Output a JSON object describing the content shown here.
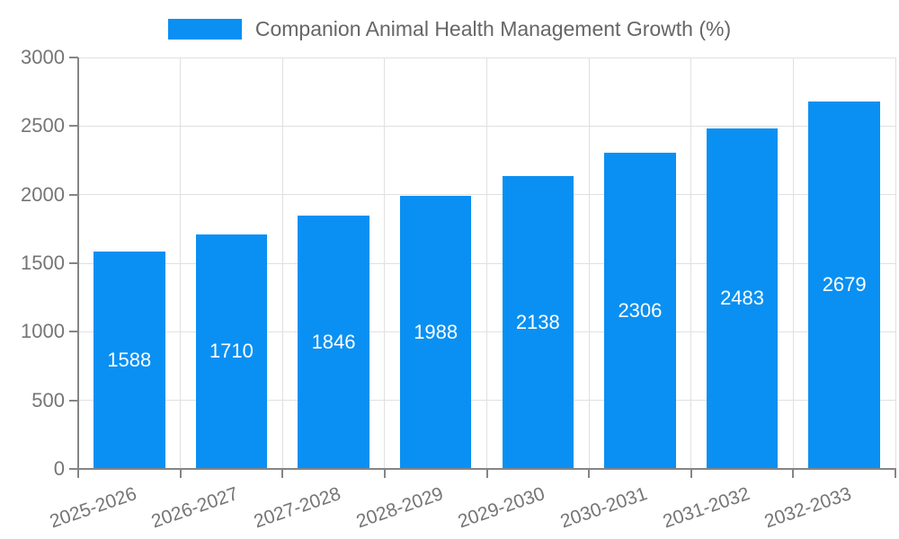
{
  "legend": {
    "label": "Companion Animal Health Management Growth (%)"
  },
  "chart_data": {
    "type": "bar",
    "title": "Companion Animal Health Management Growth (%)",
    "categories": [
      "2025-2026",
      "2026-2027",
      "2027-2028",
      "2028-2029",
      "2029-2030",
      "2030-2031",
      "2031-2032",
      "2032-2033"
    ],
    "values": [
      1588,
      1710,
      1846,
      1988,
      2138,
      2306,
      2483,
      2679
    ],
    "value_labels": [
      "1588",
      "1710",
      "1846",
      "1988",
      "2138",
      "2306",
      "2483",
      "2679"
    ],
    "xlabel": "",
    "ylabel": "",
    "ylim": [
      0,
      3000
    ],
    "yticks": [
      0,
      500,
      1000,
      1500,
      2000,
      2500,
      3000
    ],
    "ytick_labels": [
      "0",
      "500",
      "1000",
      "1500",
      "2000",
      "2500",
      "3000"
    ],
    "grid": true,
    "legend_position": "top-center",
    "colors": {
      "bar": "#0a90f2",
      "grid": "#e0e0e0",
      "axis": "#858585",
      "tick_label": "#757575",
      "legend_text": "#666666",
      "value_label": "#ffffff",
      "background": "#ffffff"
    }
  }
}
